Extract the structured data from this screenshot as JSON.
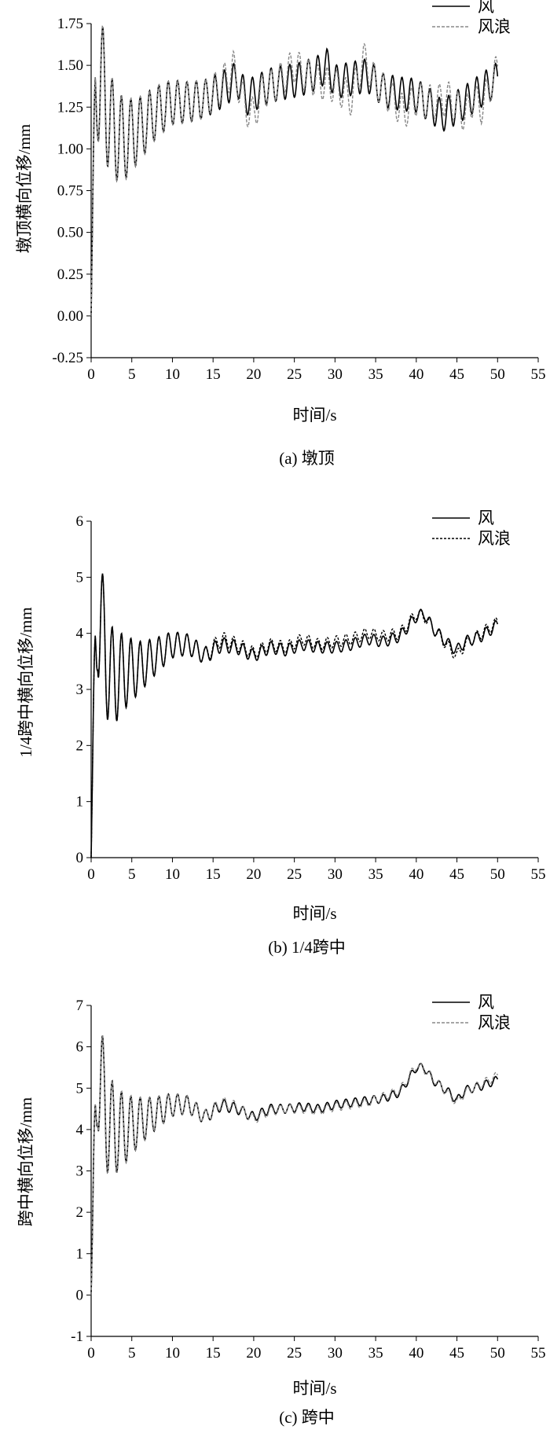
{
  "series_names": [
    "风",
    "风浪"
  ],
  "chart_data": [
    {
      "type": "line",
      "caption": "(a) 墩顶",
      "ylabel": "墩顶横向位移/mm",
      "xlabel": "时间/s",
      "xlim": [
        0,
        55
      ],
      "ylim": [
        -0.25,
        1.75
      ],
      "xticks": [
        "0",
        "5",
        "10",
        "15",
        "20",
        "25",
        "30",
        "35",
        "40",
        "45",
        "50",
        "55"
      ],
      "yticks": [
        "-0.25",
        "0.00",
        "0.25",
        "0.50",
        "0.75",
        "1.00",
        "1.25",
        "1.50",
        "1.75"
      ],
      "legend": "top-right",
      "wave_color": "#888888",
      "wave_dash": "4,2",
      "series": [
        {
          "name": "风",
          "x": [
            0,
            0.2,
            0.5,
            0.8,
            1.5,
            2.5,
            4,
            6,
            8,
            10,
            12,
            14,
            16,
            18,
            19,
            20,
            22,
            24,
            26,
            28,
            29,
            30,
            32,
            34,
            36,
            38,
            40,
            42,
            43,
            44,
            46,
            48,
            50
          ],
          "y": [
            0,
            0.6,
            1.3,
            1.45,
            1.35,
            1.12,
            1.05,
            1.12,
            1.22,
            1.28,
            1.28,
            1.3,
            1.35,
            1.42,
            1.3,
            1.33,
            1.38,
            1.4,
            1.42,
            1.46,
            1.5,
            1.4,
            1.42,
            1.44,
            1.35,
            1.33,
            1.32,
            1.25,
            1.2,
            1.22,
            1.28,
            1.35,
            1.42
          ]
        },
        {
          "name": "风浪",
          "x": [
            0,
            0.2,
            0.5,
            0.8,
            1.5,
            2.5,
            4,
            6,
            8,
            10,
            12,
            14,
            16,
            17.5,
            19,
            20,
            21,
            23,
            25,
            26,
            28,
            30,
            32,
            33.5,
            35,
            37,
            38.5,
            40,
            42,
            44,
            46,
            47,
            48,
            50
          ],
          "y": [
            0,
            0.6,
            1.3,
            1.45,
            1.35,
            1.12,
            1.05,
            1.12,
            1.22,
            1.28,
            1.28,
            1.3,
            1.38,
            1.48,
            1.25,
            1.2,
            1.34,
            1.4,
            1.5,
            1.46,
            1.4,
            1.38,
            1.3,
            1.54,
            1.4,
            1.3,
            1.22,
            1.3,
            1.28,
            1.3,
            1.2,
            1.3,
            1.25,
            1.48
          ]
        }
      ]
    },
    {
      "type": "line",
      "caption": "(b) 1/4跨中",
      "ylabel": "1/4跨中横向位移/mm",
      "xlabel": "时间/s",
      "xlim": [
        0,
        55
      ],
      "ylim": [
        0,
        6
      ],
      "xticks": [
        "0",
        "5",
        "10",
        "15",
        "20",
        "25",
        "30",
        "35",
        "40",
        "45",
        "50",
        "55"
      ],
      "yticks": [
        "0",
        "1",
        "2",
        "3",
        "4",
        "5",
        "6"
      ],
      "legend": "top-right",
      "wave_color": "#000000",
      "wave_dash": "3,2",
      "series": [
        {
          "name": "风",
          "x": [
            0,
            0.2,
            0.5,
            0.8,
            1.5,
            2.5,
            4,
            6,
            8,
            10,
            12,
            14,
            16,
            18,
            20,
            22,
            24,
            26,
            28,
            30,
            32,
            34,
            36,
            38,
            40,
            41,
            42,
            44,
            45,
            46,
            48,
            50
          ],
          "y": [
            0,
            1.5,
            3.5,
            4.6,
            3.8,
            3.2,
            3.3,
            3.4,
            3.6,
            3.8,
            3.8,
            3.6,
            3.8,
            3.75,
            3.6,
            3.75,
            3.7,
            3.8,
            3.75,
            3.75,
            3.8,
            3.9,
            3.85,
            3.95,
            4.3,
            4.35,
            4.1,
            3.8,
            3.7,
            3.85,
            3.95,
            4.15
          ]
        },
        {
          "name": "风浪",
          "x": [
            0,
            0.2,
            0.5,
            0.8,
            1.5,
            2.5,
            4,
            6,
            8,
            10,
            12,
            14,
            16,
            18,
            20,
            22,
            24,
            26,
            28,
            30,
            32,
            34,
            36,
            38,
            40,
            41,
            42,
            44,
            45,
            46,
            48,
            50
          ],
          "y": [
            0,
            1.5,
            3.5,
            4.6,
            3.8,
            3.2,
            3.3,
            3.4,
            3.6,
            3.8,
            3.8,
            3.6,
            3.9,
            3.8,
            3.65,
            3.8,
            3.75,
            3.9,
            3.8,
            3.85,
            3.9,
            4.0,
            3.95,
            4.0,
            4.35,
            4.3,
            4.1,
            3.75,
            3.6,
            3.8,
            4.0,
            4.2
          ]
        }
      ]
    },
    {
      "type": "line",
      "caption": "(c) 跨中",
      "ylabel": "跨中横向位移/mm",
      "xlabel": "时间/s",
      "xlim": [
        0,
        55
      ],
      "ylim": [
        -1,
        7
      ],
      "xticks": [
        "0",
        "5",
        "10",
        "15",
        "20",
        "25",
        "30",
        "35",
        "40",
        "45",
        "50",
        "55"
      ],
      "yticks": [
        "-1",
        "0",
        "1",
        "2",
        "3",
        "4",
        "5",
        "6",
        "7"
      ],
      "legend": "top-right",
      "wave_color": "#888888",
      "wave_dash": "4,2",
      "series": [
        {
          "name": "风",
          "x": [
            0,
            0.2,
            0.5,
            0.8,
            1.5,
            2.5,
            4,
            6,
            8,
            10,
            12,
            14,
            16,
            18,
            20,
            22,
            24,
            26,
            28,
            30,
            32,
            34,
            36,
            38,
            40,
            41,
            42,
            44,
            45,
            46,
            48,
            50
          ],
          "y": [
            0,
            1.5,
            4.0,
            5.8,
            4.6,
            4.0,
            4.0,
            4.2,
            4.4,
            4.6,
            4.6,
            4.3,
            4.6,
            4.5,
            4.3,
            4.5,
            4.5,
            4.55,
            4.5,
            4.6,
            4.65,
            4.7,
            4.75,
            4.9,
            5.5,
            5.5,
            5.2,
            4.9,
            4.7,
            4.95,
            5.05,
            5.2
          ]
        },
        {
          "name": "风浪",
          "x": [
            0,
            0.2,
            0.5,
            0.8,
            1.5,
            2.5,
            4,
            6,
            8,
            10,
            12,
            14,
            16,
            18,
            20,
            22,
            24,
            26,
            28,
            30,
            32,
            34,
            36,
            38,
            40,
            41,
            42,
            44,
            45,
            46,
            48,
            50
          ],
          "y": [
            0,
            1.5,
            4.0,
            5.8,
            4.6,
            4.0,
            4.0,
            4.2,
            4.4,
            4.6,
            4.6,
            4.3,
            4.65,
            4.55,
            4.25,
            4.45,
            4.5,
            4.5,
            4.45,
            4.55,
            4.6,
            4.65,
            4.8,
            4.95,
            5.55,
            5.45,
            5.25,
            4.85,
            4.65,
            4.9,
            5.1,
            5.3
          ]
        }
      ]
    }
  ]
}
